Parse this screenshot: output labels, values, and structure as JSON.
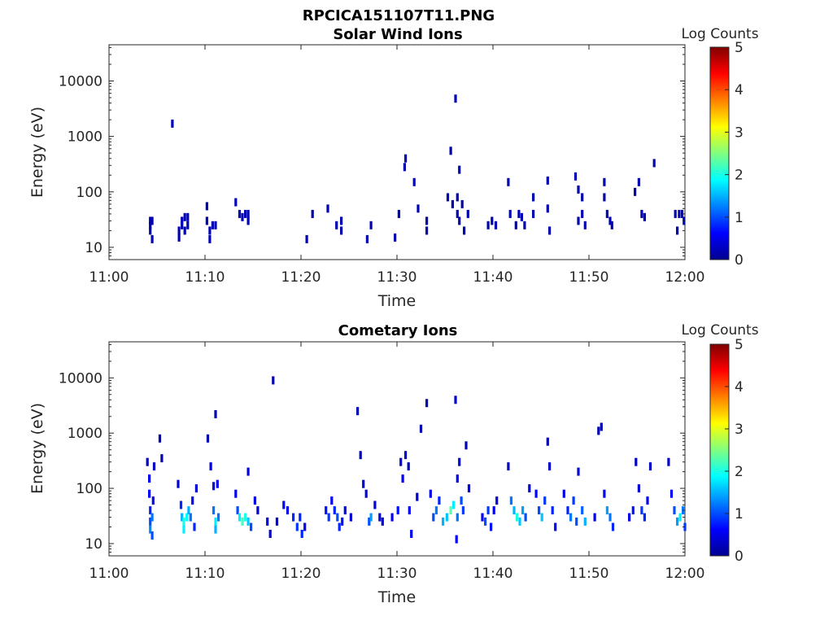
{
  "figure": {
    "title": "RPCICA151107T11.PNG"
  },
  "colors": {
    "cmap": [
      "#00008f",
      "#0000ff",
      "#0080ff",
      "#00ffff",
      "#80ff80",
      "#ffff00",
      "#ff8000",
      "#ff0000",
      "#800000"
    ]
  },
  "chart_data": [
    {
      "type": "heatmap",
      "title": "Solar Wind Ions",
      "xlabel": "Time",
      "ylabel": "Energy (eV)",
      "xlim": [
        "11:00",
        "12:00"
      ],
      "xticks": [
        "11:00",
        "11:10",
        "11:20",
        "11:30",
        "11:40",
        "11:50",
        "12:00"
      ],
      "yscale": "log",
      "ylim": [
        6,
        45000
      ],
      "yticks": [
        10,
        100,
        1000,
        10000
      ],
      "ytick_labels": [
        "10",
        "100",
        "1000",
        "10000"
      ],
      "colorbar": {
        "label": "Log Counts",
        "range": [
          0,
          5
        ],
        "ticks": [
          "0",
          "1",
          "2",
          "3",
          "4",
          "5"
        ]
      },
      "points": [
        [
          4.3,
          30,
          0.2
        ],
        [
          4.3,
          25,
          0.2
        ],
        [
          4.3,
          20,
          0.2
        ],
        [
          4.5,
          30,
          0.2
        ],
        [
          4.5,
          14,
          0.2
        ],
        [
          6.6,
          1700,
          0.2
        ],
        [
          7.3,
          20,
          0.2
        ],
        [
          7.3,
          15,
          0.2
        ],
        [
          7.6,
          30,
          0.2
        ],
        [
          7.6,
          25,
          0.2
        ],
        [
          7.9,
          35,
          0.2
        ],
        [
          7.9,
          20,
          0.2
        ],
        [
          8.2,
          35,
          0.2
        ],
        [
          8.2,
          25,
          0.2
        ],
        [
          10.2,
          55,
          0.2
        ],
        [
          10.2,
          30,
          0.2
        ],
        [
          10.5,
          20,
          0.2
        ],
        [
          10.5,
          14,
          0.2
        ],
        [
          10.8,
          25,
          0.2
        ],
        [
          11.1,
          25,
          0.2
        ],
        [
          13.2,
          65,
          0.2
        ],
        [
          13.6,
          40,
          0.2
        ],
        [
          13.9,
          35,
          0.2
        ],
        [
          14.2,
          40,
          0.2
        ],
        [
          14.5,
          40,
          0.2
        ],
        [
          14.5,
          30,
          0.2
        ],
        [
          20.6,
          14,
          0.2
        ],
        [
          21.2,
          40,
          0.2
        ],
        [
          22.8,
          50,
          0.2
        ],
        [
          23.7,
          25,
          0.2
        ],
        [
          24.2,
          30,
          0.2
        ],
        [
          24.2,
          20,
          0.2
        ],
        [
          26.9,
          14,
          0.2
        ],
        [
          27.3,
          25,
          0.2
        ],
        [
          29.8,
          15,
          0.2
        ],
        [
          30.2,
          40,
          0.2
        ],
        [
          30.8,
          280,
          0.2
        ],
        [
          30.9,
          400,
          0.2
        ],
        [
          31.8,
          150,
          0.2
        ],
        [
          32.2,
          50,
          0.2
        ],
        [
          33.1,
          30,
          0.2
        ],
        [
          33.1,
          20,
          0.2
        ],
        [
          35.3,
          80,
          0.2
        ],
        [
          35.6,
          550,
          0.2
        ],
        [
          35.8,
          60,
          0.2
        ],
        [
          36.1,
          4800,
          0.2
        ],
        [
          36.3,
          80,
          0.2
        ],
        [
          36.3,
          40,
          0.2
        ],
        [
          36.5,
          250,
          0.2
        ],
        [
          36.5,
          30,
          0.2
        ],
        [
          36.8,
          60,
          0.2
        ],
        [
          37.0,
          20,
          0.2
        ],
        [
          37.4,
          40,
          0.2
        ],
        [
          39.5,
          25,
          0.2
        ],
        [
          39.9,
          30,
          0.2
        ],
        [
          40.3,
          25,
          0.2
        ],
        [
          41.6,
          150,
          0.2
        ],
        [
          41.8,
          40,
          0.2
        ],
        [
          42.4,
          25,
          0.2
        ],
        [
          42.7,
          40,
          0.2
        ],
        [
          43.0,
          35,
          0.2
        ],
        [
          43.3,
          25,
          0.2
        ],
        [
          44.2,
          80,
          0.2
        ],
        [
          44.2,
          40,
          0.2
        ],
        [
          45.7,
          160,
          0.2
        ],
        [
          45.7,
          50,
          0.2
        ],
        [
          45.9,
          20,
          0.2
        ],
        [
          48.6,
          190,
          0.2
        ],
        [
          48.9,
          110,
          0.2
        ],
        [
          48.9,
          30,
          0.2
        ],
        [
          49.3,
          80,
          0.2
        ],
        [
          49.3,
          40,
          0.2
        ],
        [
          49.6,
          25,
          0.2
        ],
        [
          51.6,
          150,
          0.2
        ],
        [
          51.6,
          80,
          0.2
        ],
        [
          51.9,
          40,
          0.2
        ],
        [
          52.2,
          30,
          0.2
        ],
        [
          52.4,
          25,
          0.2
        ],
        [
          54.8,
          100,
          0.2
        ],
        [
          55.2,
          150,
          0.2
        ],
        [
          55.5,
          40,
          0.2
        ],
        [
          55.8,
          35,
          0.2
        ],
        [
          56.8,
          330,
          0.2
        ],
        [
          59.0,
          40,
          0.2
        ],
        [
          59.2,
          20,
          0.2
        ],
        [
          59.4,
          40,
          0.2
        ],
        [
          59.7,
          40,
          0.2
        ],
        [
          59.9,
          30,
          0.2
        ]
      ]
    },
    {
      "type": "heatmap",
      "title": "Cometary Ions",
      "xlabel": "Time",
      "ylabel": "Energy (eV)",
      "xlim": [
        "11:00",
        "12:00"
      ],
      "xticks": [
        "11:00",
        "11:10",
        "11:20",
        "11:30",
        "11:40",
        "11:50",
        "12:00"
      ],
      "yscale": "log",
      "ylim": [
        6,
        45000
      ],
      "yticks": [
        10,
        100,
        1000,
        10000
      ],
      "ytick_labels": [
        "10",
        "100",
        "1000",
        "10000"
      ],
      "colorbar": {
        "label": "Log Counts",
        "range": [
          0,
          5
        ],
        "ticks": [
          "0",
          "1",
          "2",
          "3",
          "4",
          "5"
        ]
      },
      "points": [
        [
          4.0,
          300,
          0.2
        ],
        [
          4.2,
          150,
          0.5
        ],
        [
          4.2,
          80,
          0.6
        ],
        [
          4.3,
          40,
          0.8
        ],
        [
          4.3,
          25,
          1.0
        ],
        [
          4.3,
          18,
          1.3
        ],
        [
          4.5,
          30,
          1.2
        ],
        [
          4.5,
          14,
          1.0
        ],
        [
          4.6,
          60,
          0.5
        ],
        [
          4.7,
          250,
          0.3
        ],
        [
          5.3,
          800,
          0.2
        ],
        [
          5.5,
          350,
          0.2
        ],
        [
          7.2,
          120,
          0.4
        ],
        [
          7.5,
          50,
          0.8
        ],
        [
          7.6,
          30,
          1.5
        ],
        [
          7.8,
          25,
          2.0
        ],
        [
          7.8,
          18,
          1.8
        ],
        [
          8.1,
          30,
          1.9
        ],
        [
          8.3,
          40,
          1.5
        ],
        [
          8.5,
          30,
          1.2
        ],
        [
          8.7,
          60,
          0.6
        ],
        [
          9.1,
          100,
          0.4
        ],
        [
          8.9,
          20,
          0.8
        ],
        [
          10.3,
          800,
          0.2
        ],
        [
          10.6,
          250,
          0.4
        ],
        [
          10.9,
          110,
          0.5
        ],
        [
          10.9,
          40,
          1.2
        ],
        [
          11.1,
          25,
          1.8
        ],
        [
          11.1,
          18,
          1.5
        ],
        [
          11.4,
          30,
          1.2
        ],
        [
          11.1,
          2200,
          0.2
        ],
        [
          11.3,
          120,
          0.5
        ],
        [
          13.2,
          80,
          0.5
        ],
        [
          13.4,
          40,
          1.0
        ],
        [
          13.6,
          30,
          1.8
        ],
        [
          13.9,
          25,
          2.2
        ],
        [
          14.2,
          30,
          2.0
        ],
        [
          14.5,
          200,
          0.4
        ],
        [
          14.5,
          25,
          1.6
        ],
        [
          14.8,
          20,
          1.0
        ],
        [
          15.2,
          60,
          0.5
        ],
        [
          15.5,
          40,
          0.4
        ],
        [
          16.5,
          25,
          0.5
        ],
        [
          16.8,
          15,
          0.4
        ],
        [
          17.1,
          9000,
          0.2
        ],
        [
          17.5,
          25,
          0.4
        ],
        [
          18.2,
          50,
          0.6
        ],
        [
          18.6,
          40,
          0.5
        ],
        [
          19.2,
          30,
          0.8
        ],
        [
          19.6,
          20,
          0.9
        ],
        [
          19.9,
          30,
          0.8
        ],
        [
          20.1,
          15,
          0.8
        ],
        [
          20.4,
          20,
          0.6
        ],
        [
          22.6,
          40,
          0.7
        ],
        [
          22.9,
          30,
          0.9
        ],
        [
          23.2,
          60,
          0.6
        ],
        [
          23.5,
          40,
          0.8
        ],
        [
          23.8,
          30,
          1.0
        ],
        [
          24.0,
          20,
          0.8
        ],
        [
          24.3,
          25,
          0.7
        ],
        [
          24.6,
          40,
          0.5
        ],
        [
          25.2,
          30,
          0.4
        ],
        [
          25.9,
          2500,
          0.2
        ],
        [
          26.2,
          400,
          0.2
        ],
        [
          26.5,
          120,
          0.4
        ],
        [
          26.8,
          80,
          0.4
        ],
        [
          27.1,
          25,
          1.0
        ],
        [
          27.3,
          30,
          1.4
        ],
        [
          27.7,
          50,
          0.5
        ],
        [
          28.2,
          30,
          0.4
        ],
        [
          28.5,
          25,
          0.4
        ],
        [
          29.5,
          30,
          0.6
        ],
        [
          30.1,
          40,
          0.7
        ],
        [
          30.4,
          300,
          0.4
        ],
        [
          30.6,
          150,
          0.5
        ],
        [
          30.9,
          400,
          0.4
        ],
        [
          31.2,
          250,
          0.3
        ],
        [
          31.3,
          40,
          0.6
        ],
        [
          31.5,
          15,
          0.6
        ],
        [
          32.1,
          70,
          0.4
        ],
        [
          32.5,
          1200,
          0.2
        ],
        [
          33.1,
          3500,
          0.2
        ],
        [
          33.5,
          80,
          0.5
        ],
        [
          33.8,
          30,
          1.0
        ],
        [
          34.1,
          40,
          1.2
        ],
        [
          34.4,
          60,
          0.8
        ],
        [
          34.8,
          25,
          1.5
        ],
        [
          35.2,
          30,
          1.6
        ],
        [
          35.6,
          40,
          2.3
        ],
        [
          35.9,
          50,
          1.8
        ],
        [
          36.1,
          4000,
          0.3
        ],
        [
          36.3,
          150,
          0.6
        ],
        [
          36.3,
          30,
          1.2
        ],
        [
          36.5,
          300,
          0.4
        ],
        [
          36.7,
          60,
          1.0
        ],
        [
          36.9,
          40,
          0.9
        ],
        [
          37.2,
          600,
          0.2
        ],
        [
          37.5,
          100,
          0.5
        ],
        [
          36.2,
          12,
          0.6
        ],
        [
          38.9,
          30,
          0.6
        ],
        [
          39.2,
          25,
          1.0
        ],
        [
          39.5,
          40,
          0.9
        ],
        [
          39.8,
          20,
          0.7
        ],
        [
          40.1,
          40,
          0.5
        ],
        [
          40.4,
          60,
          0.4
        ],
        [
          41.6,
          250,
          0.3
        ],
        [
          41.9,
          60,
          1.2
        ],
        [
          42.2,
          40,
          1.5
        ],
        [
          42.5,
          30,
          2.0
        ],
        [
          42.8,
          25,
          1.6
        ],
        [
          43.1,
          40,
          1.4
        ],
        [
          43.4,
          30,
          1.0
        ],
        [
          43.8,
          100,
          0.4
        ],
        [
          44.5,
          80,
          0.6
        ],
        [
          44.8,
          40,
          1.0
        ],
        [
          45.1,
          30,
          1.6
        ],
        [
          45.4,
          60,
          0.9
        ],
        [
          45.7,
          700,
          0.2
        ],
        [
          45.9,
          250,
          0.3
        ],
        [
          46.2,
          40,
          0.8
        ],
        [
          46.5,
          20,
          0.6
        ],
        [
          47.4,
          80,
          0.5
        ],
        [
          47.8,
          40,
          0.8
        ],
        [
          48.1,
          30,
          1.2
        ],
        [
          48.4,
          60,
          0.9
        ],
        [
          48.7,
          25,
          1.0
        ],
        [
          48.9,
          200,
          0.4
        ],
        [
          49.3,
          40,
          1.1
        ],
        [
          49.6,
          25,
          1.5
        ],
        [
          50.6,
          30,
          0.5
        ],
        [
          51.0,
          1100,
          0.2
        ],
        [
          51.3,
          1300,
          0.2
        ],
        [
          51.6,
          80,
          0.6
        ],
        [
          51.9,
          40,
          1.4
        ],
        [
          52.2,
          30,
          1.2
        ],
        [
          52.5,
          20,
          0.8
        ],
        [
          54.2,
          30,
          0.5
        ],
        [
          54.6,
          40,
          0.7
        ],
        [
          54.9,
          300,
          0.3
        ],
        [
          55.2,
          100,
          0.4
        ],
        [
          55.5,
          40,
          0.9
        ],
        [
          55.8,
          30,
          0.8
        ],
        [
          56.1,
          60,
          0.5
        ],
        [
          56.4,
          250,
          0.3
        ],
        [
          58.3,
          300,
          0.3
        ],
        [
          58.6,
          80,
          0.6
        ],
        [
          58.9,
          40,
          1.0
        ],
        [
          59.2,
          25,
          1.4
        ],
        [
          59.5,
          30,
          1.8
        ],
        [
          59.8,
          40,
          1.2
        ],
        [
          60.0,
          20,
          0.9
        ]
      ]
    }
  ]
}
